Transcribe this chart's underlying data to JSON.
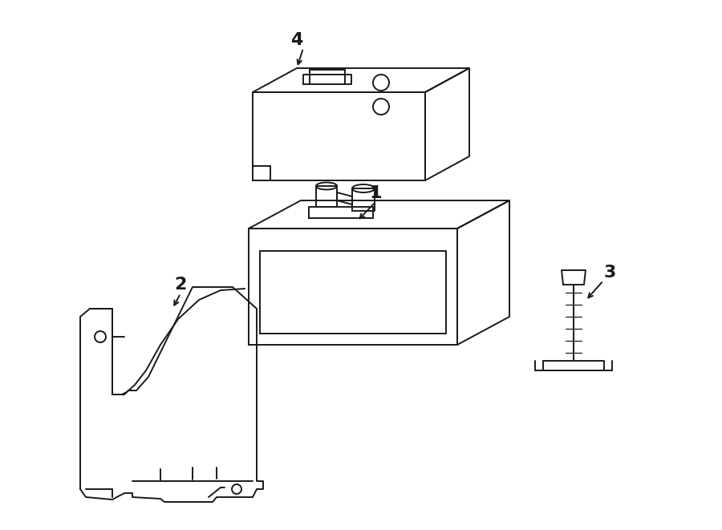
{
  "bg_color": "#ffffff",
  "line_color": "#1a1a1a",
  "line_width": 1.4,
  "figsize": [
    9.0,
    6.61
  ],
  "dpi": 100
}
